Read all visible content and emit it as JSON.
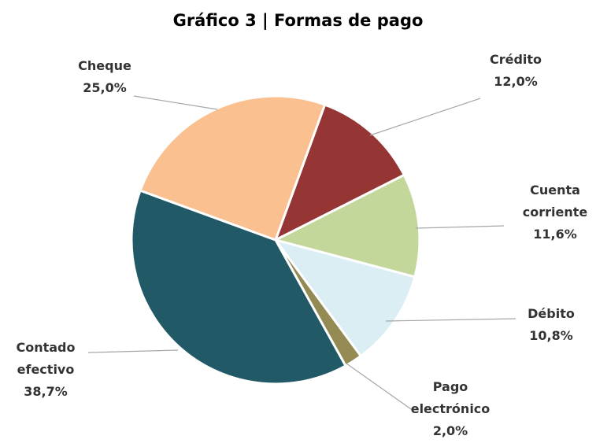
{
  "chart_data": {
    "type": "pie",
    "title": "Gráfico 3 | Formas de pago",
    "categories": [
      "Crédito",
      "Cuenta corriente",
      "Débito",
      "Pago electrónico",
      "Contado efectivo",
      "Cheque"
    ],
    "values": [
      12.0,
      11.6,
      10.8,
      2.0,
      38.7,
      25.0
    ],
    "value_labels": [
      "12,0%",
      "11,6%",
      "10,8%",
      "2,0%",
      "38,7%",
      "25,0%"
    ],
    "colors": [
      "#963634",
      "#c4d79b",
      "#daeef3",
      "#948a54",
      "#215967",
      "#fac090"
    ]
  }
}
